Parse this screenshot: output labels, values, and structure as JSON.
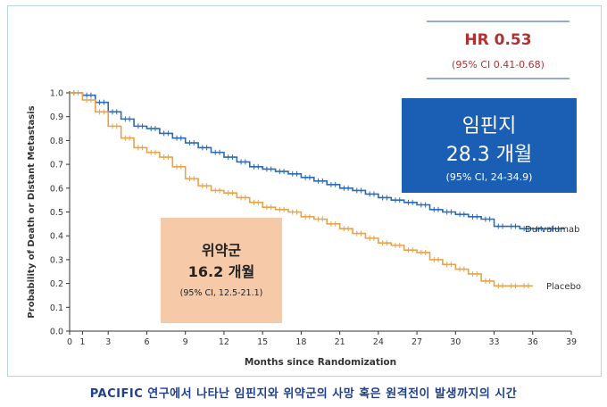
{
  "chart_data": {
    "type": "line",
    "xlabel": "Months since Randomization",
    "ylabel": "Probability of Death or Distant Metastasis",
    "xlim": [
      0,
      39
    ],
    "ylim": [
      0,
      1.0
    ],
    "x_ticks": [
      "0",
      "1",
      "3",
      "6",
      "9",
      "12",
      "15",
      "18",
      "21",
      "24",
      "27",
      "30",
      "33",
      "36",
      "39"
    ],
    "x_tick_values": [
      0,
      1,
      3,
      6,
      9,
      12,
      15,
      18,
      21,
      24,
      27,
      30,
      33,
      36,
      39
    ],
    "y_ticks": [
      "0.0",
      "0.1",
      "0.2",
      "0.3",
      "0.4",
      "0.5",
      "0.6",
      "0.7",
      "0.8",
      "0.9",
      "1.0"
    ],
    "y_tick_values": [
      0,
      0.1,
      0.2,
      0.3,
      0.4,
      0.5,
      0.6,
      0.7,
      0.8,
      0.9,
      1.0
    ],
    "series": [
      {
        "name": "Durvalumab",
        "color": "#2a6ab8",
        "x": [
          0,
          1,
          2,
          3,
          4,
          5,
          6,
          7,
          8,
          9,
          10,
          11,
          12,
          13,
          14,
          15,
          16,
          17,
          18,
          19,
          20,
          21,
          22,
          23,
          24,
          25,
          26,
          27,
          28,
          29,
          30,
          31,
          32,
          33,
          34,
          35,
          36,
          37,
          38.5
        ],
        "y": [
          1.0,
          0.99,
          0.96,
          0.92,
          0.89,
          0.86,
          0.85,
          0.83,
          0.81,
          0.79,
          0.77,
          0.75,
          0.73,
          0.71,
          0.69,
          0.68,
          0.67,
          0.66,
          0.645,
          0.63,
          0.615,
          0.6,
          0.59,
          0.575,
          0.56,
          0.55,
          0.54,
          0.53,
          0.51,
          0.5,
          0.49,
          0.48,
          0.47,
          0.44,
          0.44,
          0.43,
          0.43,
          0.43,
          0.43
        ]
      },
      {
        "name": "Placebo",
        "color": "#e8a24a",
        "x": [
          0,
          1,
          2,
          3,
          4,
          5,
          6,
          7,
          8,
          9,
          10,
          11,
          12,
          13,
          14,
          15,
          16,
          17,
          18,
          19,
          20,
          21,
          22,
          23,
          24,
          25,
          26,
          27,
          28,
          29,
          30,
          31,
          32,
          33,
          34,
          35,
          36
        ],
        "y": [
          1.0,
          0.97,
          0.92,
          0.86,
          0.81,
          0.77,
          0.75,
          0.73,
          0.69,
          0.64,
          0.61,
          0.59,
          0.58,
          0.56,
          0.54,
          0.52,
          0.51,
          0.5,
          0.48,
          0.47,
          0.45,
          0.43,
          0.41,
          0.39,
          0.37,
          0.36,
          0.34,
          0.33,
          0.3,
          0.28,
          0.26,
          0.24,
          0.21,
          0.19,
          0.19,
          0.19,
          0.19
        ]
      }
    ],
    "annotations": {
      "hr_main": "HR 0.53",
      "hr_ci": "(95% CI 0.41-0.68)",
      "durva_box_line1": "임핀지",
      "durva_box_line2": "28.3 개월",
      "durva_box_ci": "(95% CI, 24-34.9)",
      "placebo_box_line1": "위약군",
      "placebo_box_line2": "16.2 개월",
      "placebo_box_ci": "(95% CI, 12.5-21.1)",
      "durva_label": "Durvalumab",
      "placebo_label": "Placebo"
    },
    "grid": false,
    "colors": {
      "durva_box": "#1a5fb4",
      "placebo_box": "#f6c9a8",
      "hr_text": "#b23030",
      "axis": "#333333"
    }
  },
  "caption": "PACIFIC 연구에서 나타난 임핀지와 위약군의 사망 혹은 원격전이 발생까지의 시간"
}
